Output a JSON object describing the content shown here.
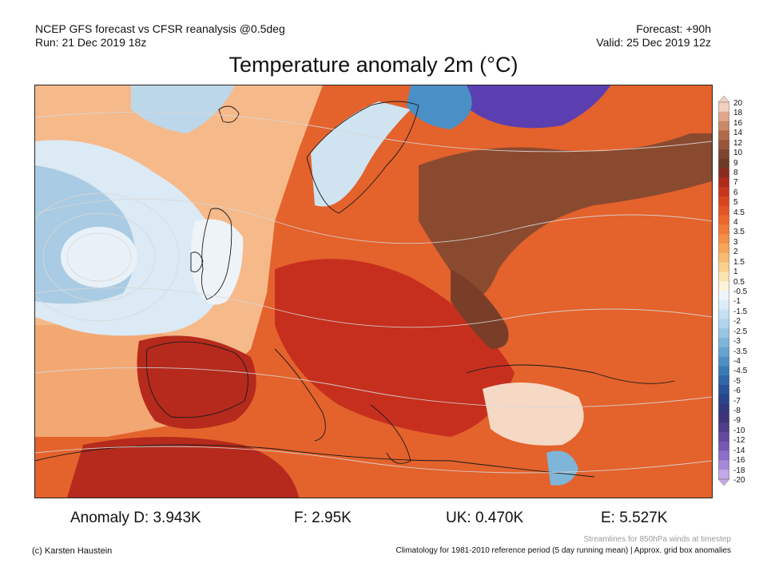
{
  "header": {
    "model_line": "NCEP GFS forecast vs CFSR reanalysis @0.5deg",
    "run_line": "Run: 21 Dec 2019 18z",
    "forecast_line": "Forecast: +90h",
    "valid_line": "Valid: 25 Dec 2019 12z"
  },
  "title": "Temperature anomaly 2m (°C)",
  "colorbar": {
    "labels": [
      "20",
      "18",
      "16",
      "14",
      "12",
      "10",
      "9",
      "8",
      "7",
      "6",
      "5",
      "4.5",
      "4",
      "3.5",
      "3",
      "2",
      "1.5",
      "1",
      "0.5",
      "-0.5",
      "-1",
      "-1.5",
      "-2",
      "-2.5",
      "-3",
      "-3.5",
      "-4",
      "-4.5",
      "-5",
      "-6",
      "-7",
      "-8",
      "-9",
      "-10",
      "-12",
      "-14",
      "-16",
      "-18",
      "-20"
    ],
    "warm_colors": [
      "#f2d0c0",
      "#e1a78c",
      "#c98a67",
      "#b06b4a",
      "#97553a",
      "#7f462f",
      "#6e3a28",
      "#8a2a1e",
      "#b02a1c",
      "#c8351e",
      "#d9441f",
      "#e35525",
      "#ea672c",
      "#ef7b36",
      "#f39045",
      "#f6a55a",
      "#f8bb73",
      "#fad08f",
      "#fbe3b2",
      "#fdf2d8"
    ],
    "cool_colors": [
      "#eef5fa",
      "#dcecf6",
      "#c6e1f1",
      "#b0d4ea",
      "#98c6e2",
      "#7fb5d8",
      "#66a3ce",
      "#4f8fc2",
      "#3b7bb5",
      "#2e66a7",
      "#285398",
      "#2a4389",
      "#33387c",
      "#3f3477",
      "#4f3c8a",
      "#62499e",
      "#7758b2",
      "#8e6dc6",
      "#a889d7",
      "#c3a8e6"
    ]
  },
  "stats": {
    "d": "Anomaly D: 3.943K",
    "f": "F: 2.95K",
    "uk": "UK: 0.470K",
    "e": "E: 5.527K"
  },
  "footer": {
    "credit": "(c) Karsten Haustein",
    "streamlines": "Streamlines for 850hPa winds at timestep",
    "climatology": "Climatology for 1981-2010 reference period (5 day running mean) | Approx. grid box anomalies"
  },
  "map": {
    "ocean_cold_color": "#a9cbe3",
    "warm_color": "#d8401f",
    "hot_color": "#a8281a",
    "brown_color": "#8a4a30",
    "purple_color": "#5b3fb0"
  }
}
